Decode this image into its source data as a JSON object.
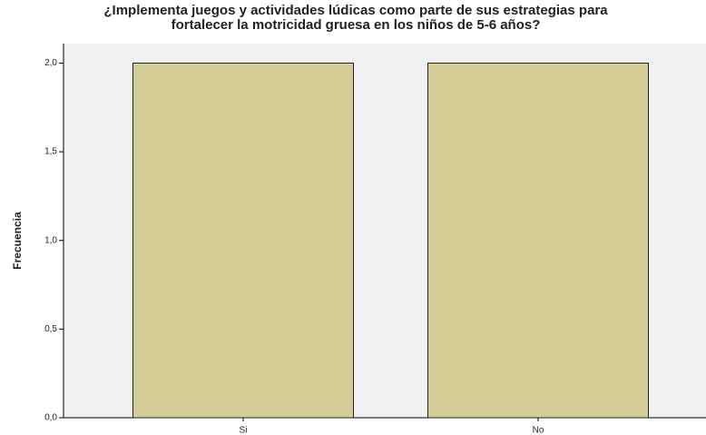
{
  "chart_data": {
    "type": "bar",
    "title": [
      "¿Implementa juegos y actividades lúdicas como parte de sus estrategias para",
      "fortalecer la motricidad gruesa en los niños de 5-6 años?"
    ],
    "y_label": "Frecuencia",
    "categories": [
      "Si",
      "No"
    ],
    "values": [
      2,
      2
    ],
    "color": "#d3ce97",
    "ylim": [
      0,
      2.11
    ],
    "yticks": [
      {
        "value": 0,
        "label": "0,0"
      },
      {
        "value": 0.5,
        "label": "0,5"
      },
      {
        "value": 1,
        "label": "1,0"
      },
      {
        "value": 1.5,
        "label": "1,5"
      },
      {
        "value": 2,
        "label": "2,0"
      }
    ]
  }
}
